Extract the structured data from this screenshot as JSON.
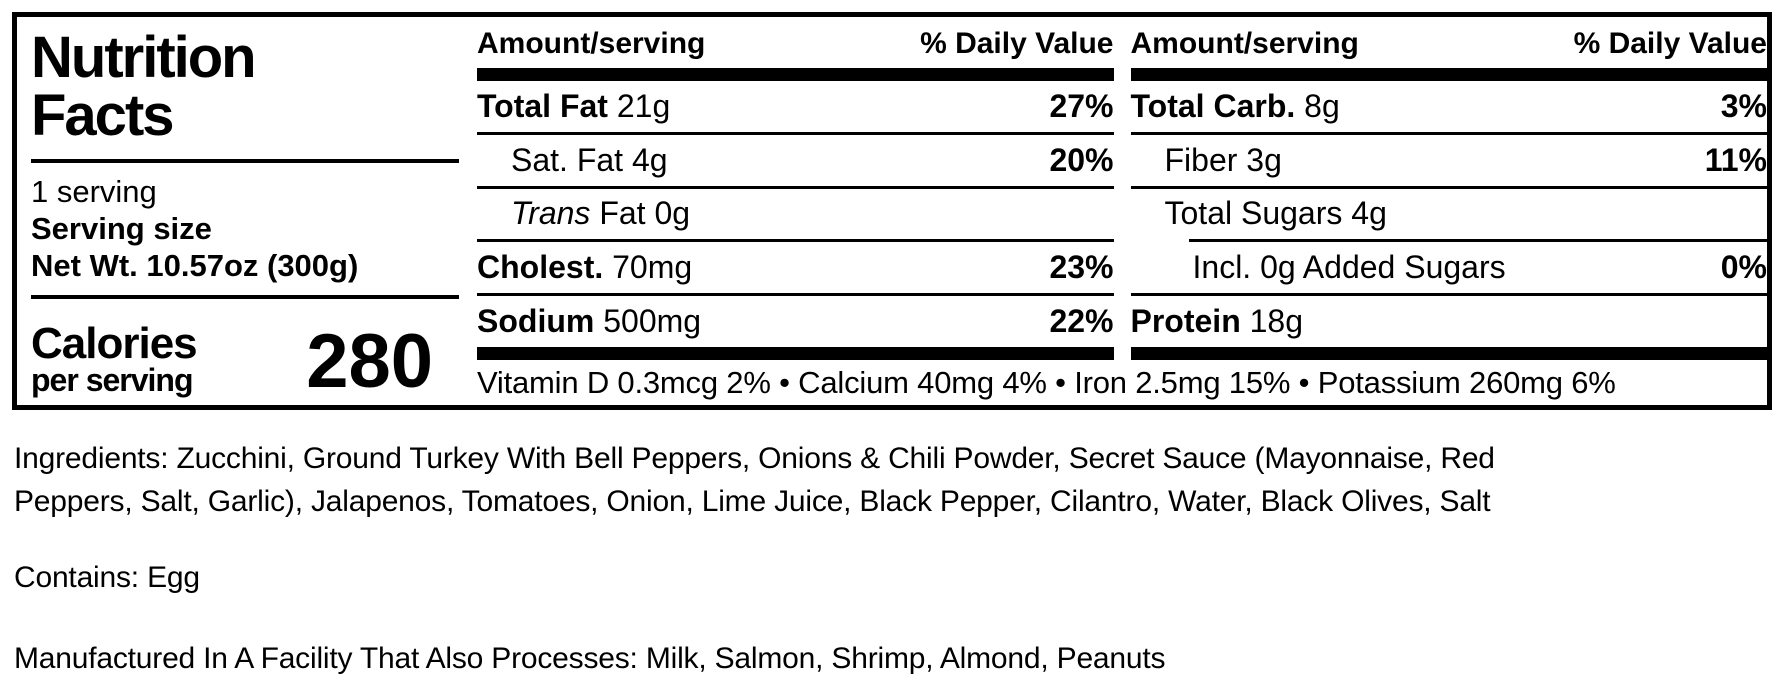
{
  "label": {
    "title_line1": "Nutrition",
    "title_line2": "Facts",
    "servings_per_container": "1 serving",
    "serving_size_label": "Serving size",
    "serving_size_value": "Net Wt. 10.57oz (300g)",
    "calories_label": "Calories",
    "calories_sublabel": "per serving",
    "calories_value": "280",
    "column_header": {
      "amount": "Amount/serving",
      "daily_value": "% Daily Value"
    },
    "mid_column": {
      "total_fat": {
        "name": "Total Fat",
        "amount": "21g",
        "dv": "27%"
      },
      "sat_fat": {
        "name": "Sat. Fat",
        "amount": "4g",
        "dv": "20%"
      },
      "trans_fat": {
        "name_italic": "Trans",
        "name_rest": "Fat",
        "amount": "0g"
      },
      "cholesterol": {
        "name": "Cholest.",
        "amount": "70mg",
        "dv": "23%"
      },
      "sodium": {
        "name": "Sodium",
        "amount": "500mg",
        "dv": "22%"
      }
    },
    "right_column": {
      "total_carb": {
        "name": "Total Carb.",
        "amount": "8g",
        "dv": "3%"
      },
      "fiber": {
        "name": "Fiber",
        "amount": "3g",
        "dv": "11%"
      },
      "total_sugars": {
        "name": "Total Sugars",
        "amount": "4g"
      },
      "added_sugars": {
        "name": "Incl. 0g Added Sugars",
        "dv": "0%"
      },
      "protein": {
        "name": "Protein",
        "amount": "18g"
      }
    },
    "micronutrients": "Vitamin D 0.3mcg 2% • Calcium 40mg 4% • Iron 2.5mg 15% • Potassium 260mg 6%"
  },
  "footer": {
    "ingredients": "Ingredients: Zucchini, Ground Turkey With Bell Peppers, Onions & Chili Powder, Secret Sauce (Mayonnaise, Red Peppers, Salt, Garlic), Jalapenos, Tomatoes, Onion, Lime Juice, Black Pepper, Cilantro, Water, Black Olives, Salt",
    "contains": "Contains: Egg",
    "facility": "Manufactured In A Facility That Also Processes: Milk, Salmon, Shrimp, Almond, Peanuts"
  },
  "colors": {
    "ink": "#000000",
    "background": "#ffffff"
  }
}
